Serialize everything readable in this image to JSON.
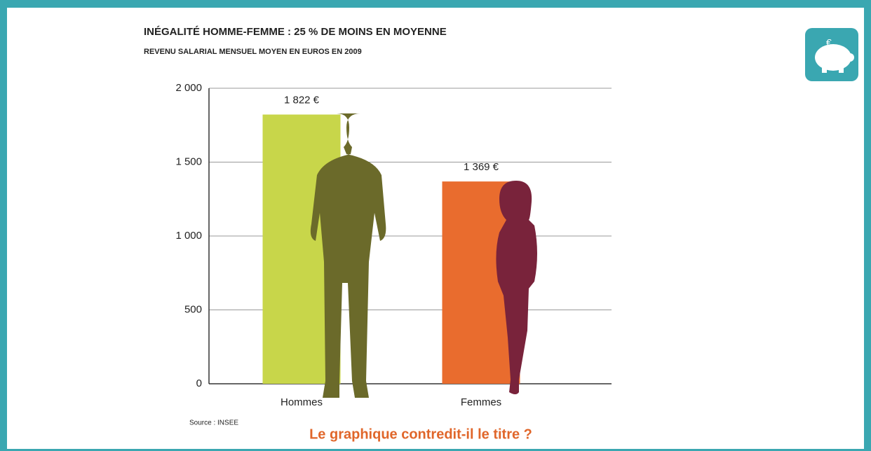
{
  "chart_data": {
    "type": "bar",
    "title": "INÉGALITÉ HOMME-FEMME : 25 % DE MOINS EN MOYENNE",
    "subtitle": "REVENU SALARIAL MENSUEL MOYEN EN EUROS EN 2009",
    "categories": [
      "Hommes",
      "Femmes"
    ],
    "values": [
      1822,
      1369
    ],
    "value_labels": [
      "1 822 €",
      "1 369 €"
    ],
    "colors": [
      "#c8d64a",
      "#e96c2e"
    ],
    "ylim": [
      0,
      2000
    ],
    "yticks": [
      0,
      500,
      {
        "value": 1000,
        "label": "1 000"
      },
      {
        "value": 1500,
        "label": "1 500"
      },
      {
        "value": 2000,
        "label": "2 000"
      }
    ],
    "grid": true,
    "source": "Source : INSEE",
    "annotation": "Le graphique contredit-il le titre ?"
  }
}
